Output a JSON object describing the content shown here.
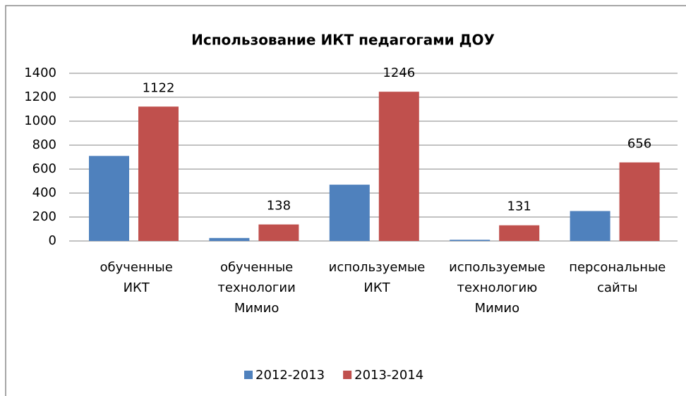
{
  "chart_data": {
    "type": "bar",
    "title": "Использование ИКТ педагогами ДОУ",
    "categories": [
      "обученные ИКТ",
      "обученные технологии Мимио",
      "используемые ИКТ",
      "используемые технологию Мимио",
      "персональные сайты"
    ],
    "series": [
      {
        "name": "2012-2013",
        "color": "#4f81bd",
        "values": [
          710,
          25,
          470,
          10,
          250
        ],
        "show_labels": false
      },
      {
        "name": "2013-2014",
        "color": "#c0504d",
        "values": [
          1122,
          138,
          1246,
          131,
          656
        ],
        "show_labels": true
      }
    ],
    "ylim": [
      0,
      1400
    ],
    "yticks": [
      0,
      200,
      400,
      600,
      800,
      1000,
      1200,
      1400
    ],
    "grid": true,
    "legend": "bottom"
  }
}
